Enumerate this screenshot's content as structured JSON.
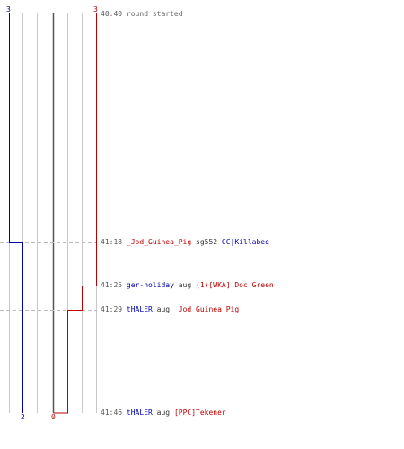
{
  "colors": {
    "blue": "#0000aa",
    "red": "#bb0000",
    "grid": "#c8c8c8",
    "center": "#555555",
    "dash": "#bbbbbb"
  },
  "scores": {
    "blue_start": "3",
    "red_start": "3",
    "blue_end": "2",
    "red_end": "0"
  },
  "events": [
    {
      "time": "40:40",
      "text": "round started"
    },
    {
      "time": "41:18",
      "actor": "_Jod_Guinea_Pig",
      "action": "sg552",
      "target": "CC|Killabee"
    },
    {
      "time": "41:25",
      "actor": "ger-holiday",
      "action": "aug",
      "target": "(1)[WKA] Doc Green"
    },
    {
      "time": "41:29",
      "actor": "tHALER",
      "action": "aug",
      "target": "_Jod_Guinea_Pig"
    },
    {
      "time": "41:46",
      "actor": "tHALER",
      "action": "aug",
      "target": "[PPC]Tekener"
    }
  ]
}
